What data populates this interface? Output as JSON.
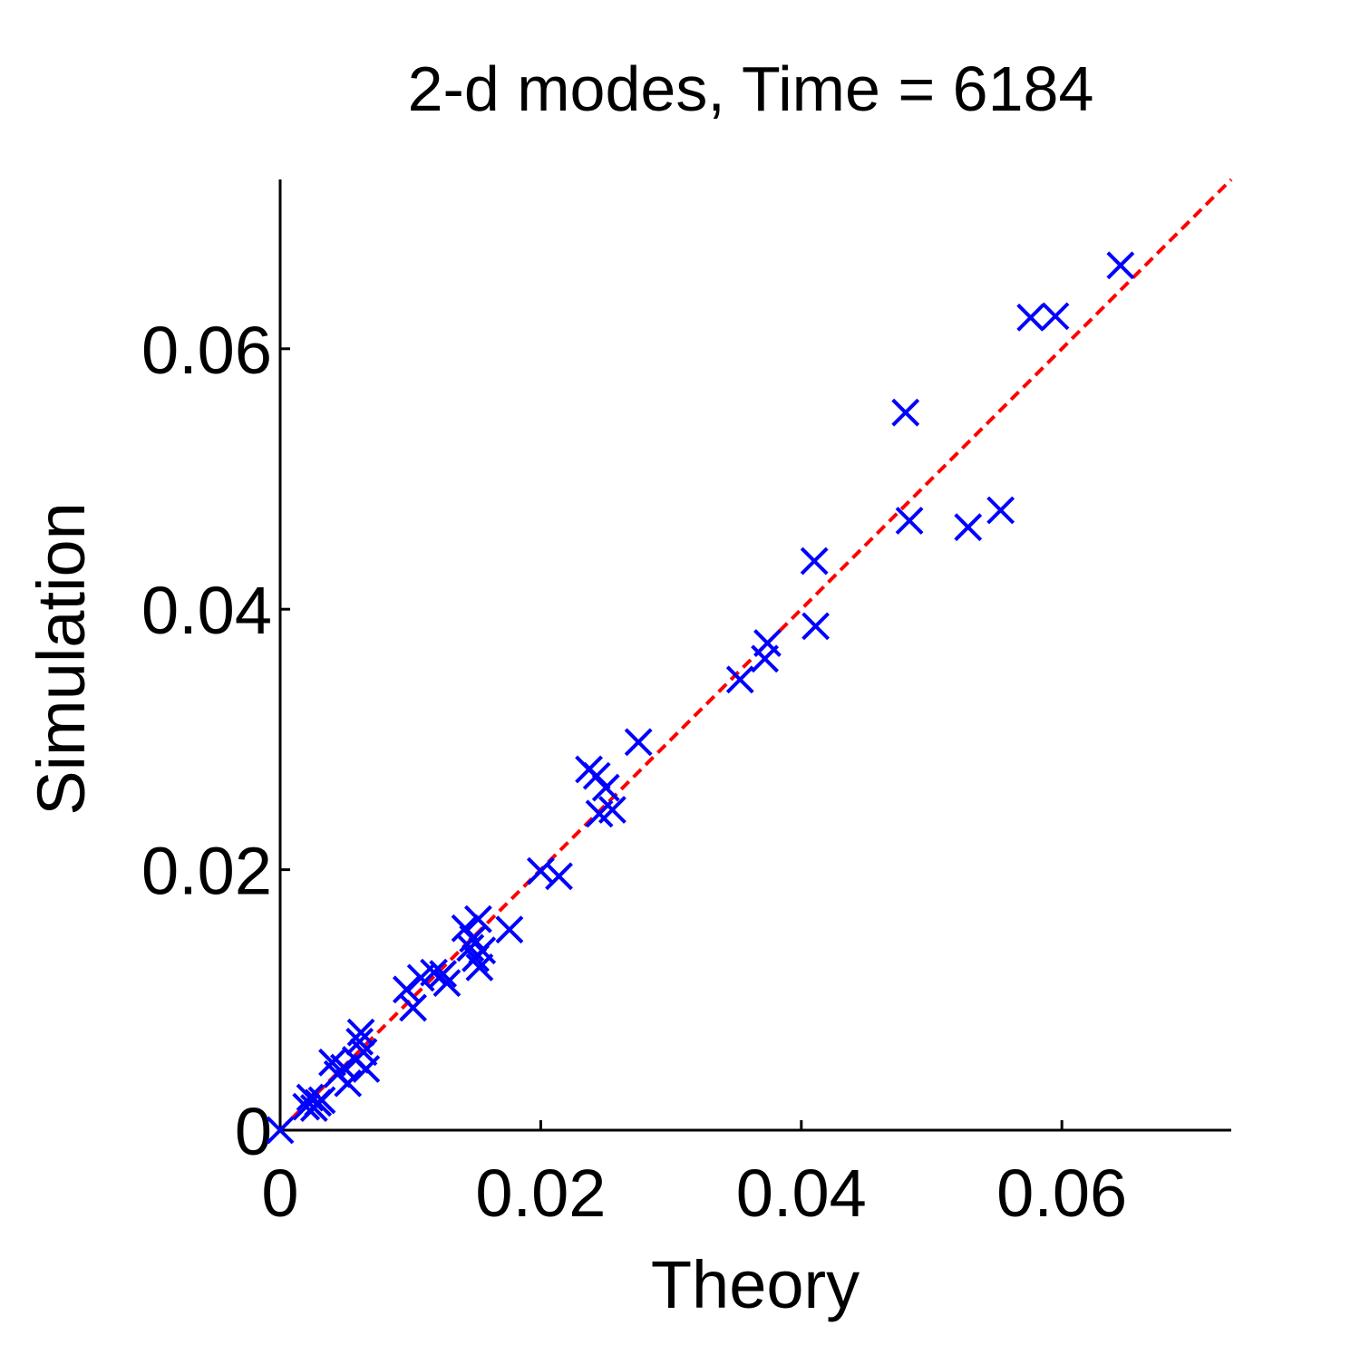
{
  "chart_data": {
    "type": "scatter",
    "title": "2-d modes, Time = 6184",
    "xlabel": "Theory",
    "ylabel": "Simulation",
    "xlim": [
      0,
      0.073
    ],
    "ylim": [
      0,
      0.073
    ],
    "xticks": [
      0,
      0.02,
      0.04,
      0.06
    ],
    "yticks": [
      0,
      0.02,
      0.04,
      0.06
    ],
    "xtick_labels": [
      "0",
      "0.02",
      "0.04",
      "0.06"
    ],
    "ytick_labels": [
      "0",
      "0.02",
      "0.04",
      "0.06"
    ],
    "grid": false,
    "marker": "x",
    "marker_color": "#0000ff",
    "reference_line": {
      "style": "dashed",
      "color": "#ff0000",
      "from": [
        0,
        0
      ],
      "to": [
        0.073,
        0.073
      ]
    },
    "points": [
      [
        0.0,
        0.0
      ],
      [
        0.002,
        0.0018
      ],
      [
        0.0023,
        0.0025
      ],
      [
        0.0026,
        0.0017
      ],
      [
        0.0029,
        0.0021
      ],
      [
        0.0032,
        0.0023
      ],
      [
        0.004,
        0.0052
      ],
      [
        0.0044,
        0.0043
      ],
      [
        0.0049,
        0.0048
      ],
      [
        0.0052,
        0.0036
      ],
      [
        0.0058,
        0.0054
      ],
      [
        0.0061,
        0.0068
      ],
      [
        0.0062,
        0.0075
      ],
      [
        0.0064,
        0.006
      ],
      [
        0.0066,
        0.0047
      ],
      [
        0.0097,
        0.0108
      ],
      [
        0.0102,
        0.0094
      ],
      [
        0.0108,
        0.0117
      ],
      [
        0.0118,
        0.0121
      ],
      [
        0.0125,
        0.012
      ],
      [
        0.0128,
        0.0113
      ],
      [
        0.0142,
        0.0155
      ],
      [
        0.0146,
        0.014
      ],
      [
        0.0148,
        0.0147
      ],
      [
        0.015,
        0.0132
      ],
      [
        0.0152,
        0.0162
      ],
      [
        0.0153,
        0.0125
      ],
      [
        0.0155,
        0.0138
      ],
      [
        0.0176,
        0.0154
      ],
      [
        0.02,
        0.0199
      ],
      [
        0.0214,
        0.0195
      ],
      [
        0.0237,
        0.0277
      ],
      [
        0.0243,
        0.0272
      ],
      [
        0.0245,
        0.0243
      ],
      [
        0.025,
        0.0263
      ],
      [
        0.0255,
        0.0246
      ],
      [
        0.0275,
        0.0298
      ],
      [
        0.0353,
        0.0346
      ],
      [
        0.0372,
        0.0362
      ],
      [
        0.0374,
        0.0374
      ],
      [
        0.041,
        0.0437
      ],
      [
        0.0411,
        0.0387
      ],
      [
        0.048,
        0.0551
      ],
      [
        0.0483,
        0.0468
      ],
      [
        0.0528,
        0.0463
      ],
      [
        0.0553,
        0.0476
      ],
      [
        0.0576,
        0.0624
      ],
      [
        0.0595,
        0.0625
      ],
      [
        0.0645,
        0.0664
      ]
    ]
  }
}
